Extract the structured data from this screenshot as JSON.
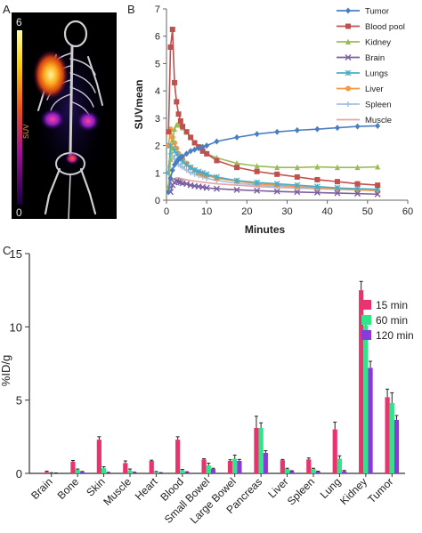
{
  "panel_labels": {
    "a": "A",
    "b": "B",
    "c": "C"
  },
  "colorbar": {
    "max_label": "6",
    "min_label": "0",
    "unit_label": "SUV"
  },
  "chart_data": [
    {
      "type": "line",
      "panel": "B",
      "xlabel": "Minutes",
      "ylabel": "SUVmean",
      "xlim": [
        0,
        60
      ],
      "ylim": [
        0,
        7
      ],
      "xticks": [
        0,
        10,
        20,
        30,
        40,
        50,
        60
      ],
      "yticks": [
        0,
        1,
        2,
        3,
        4,
        5,
        6,
        7
      ],
      "grid": false,
      "legend": "right",
      "series": [
        {
          "name": "Tumor",
          "color": "#4a7ec0",
          "marker": "diamond",
          "x": [
            0.5,
            1,
            1.5,
            2,
            2.5,
            3,
            3.5,
            4,
            5,
            6,
            7,
            8,
            9,
            10,
            12.5,
            17.5,
            22.5,
            27.5,
            32.5,
            37.5,
            42.5,
            47.5,
            52.5
          ],
          "y": [
            0.3,
            0.8,
            1.1,
            1.3,
            1.4,
            1.5,
            1.55,
            1.6,
            1.7,
            1.8,
            1.85,
            1.9,
            1.95,
            2.0,
            2.15,
            2.3,
            2.42,
            2.5,
            2.56,
            2.6,
            2.65,
            2.7,
            2.72
          ]
        },
        {
          "name": "Blood pool",
          "color": "#c0504d",
          "marker": "square",
          "x": [
            0.5,
            1,
            1.5,
            2,
            2.5,
            3,
            3.5,
            4,
            5,
            6,
            7,
            8,
            9,
            10,
            12.5,
            17.5,
            22.5,
            27.5,
            32.5,
            37.5,
            42.5,
            47.5,
            52.5
          ],
          "y": [
            2.5,
            5.6,
            6.25,
            4.3,
            3.6,
            3.15,
            2.9,
            2.7,
            2.5,
            2.3,
            2.1,
            1.95,
            1.8,
            1.7,
            1.45,
            1.2,
            1.05,
            0.95,
            0.85,
            0.75,
            0.68,
            0.6,
            0.55
          ]
        },
        {
          "name": "Kidney",
          "color": "#9bbb59",
          "marker": "triangle",
          "x": [
            0.5,
            1,
            1.5,
            2,
            2.5,
            3,
            3.5,
            4,
            5,
            6,
            7,
            8,
            9,
            10,
            12.5,
            17.5,
            22.5,
            27.5,
            32.5,
            37.5,
            42.5,
            47.5,
            52.5
          ],
          "y": [
            0.5,
            1.5,
            2.2,
            2.6,
            2.75,
            2.8,
            2.75,
            2.65,
            2.5,
            2.3,
            2.1,
            1.95,
            1.8,
            1.7,
            1.55,
            1.35,
            1.25,
            1.2,
            1.2,
            1.22,
            1.2,
            1.2,
            1.22
          ]
        },
        {
          "name": "Brain",
          "color": "#7a5ea0",
          "marker": "x",
          "x": [
            1,
            1.5,
            2,
            2.5,
            3,
            3.5,
            4,
            5,
            6,
            7,
            8,
            9,
            10,
            12.5,
            17.5,
            22.5,
            27.5,
            32.5,
            37.5,
            42.5,
            47.5,
            52.5
          ],
          "y": [
            0.3,
            0.55,
            0.65,
            0.7,
            0.68,
            0.65,
            0.62,
            0.6,
            0.55,
            0.52,
            0.5,
            0.48,
            0.45,
            0.42,
            0.38,
            0.35,
            0.32,
            0.3,
            0.28,
            0.26,
            0.24,
            0.22
          ]
        },
        {
          "name": "Lungs",
          "color": "#4bacc6",
          "marker": "asterisk",
          "x": [
            0.5,
            1,
            1.5,
            2,
            2.5,
            3,
            3.5,
            4,
            5,
            6,
            7,
            8,
            9,
            10,
            12.5,
            17.5,
            22.5,
            27.5,
            32.5,
            37.5,
            42.5,
            47.5,
            52.5
          ],
          "y": [
            1.0,
            2.0,
            1.9,
            1.8,
            1.7,
            1.6,
            1.5,
            1.4,
            1.3,
            1.2,
            1.1,
            1.05,
            1.0,
            0.95,
            0.85,
            0.72,
            0.65,
            0.6,
            0.55,
            0.5,
            0.45,
            0.42,
            0.4
          ]
        },
        {
          "name": "Liver",
          "color": "#f79646",
          "marker": "circle",
          "x": [
            0.5,
            1,
            1.5,
            2,
            2.5,
            3,
            3.5,
            4,
            5,
            6,
            7,
            8,
            9,
            10,
            12.5,
            17.5,
            22.5,
            27.5,
            32.5,
            37.5,
            42.5,
            47.5,
            52.5
          ],
          "y": [
            2.0,
            2.6,
            2.3,
            2.1,
            1.9,
            1.7,
            1.6,
            1.5,
            1.35,
            1.2,
            1.1,
            1.0,
            0.95,
            0.9,
            0.8,
            0.7,
            0.6,
            0.55,
            0.5,
            0.45,
            0.42,
            0.38,
            0.35
          ]
        },
        {
          "name": "Spleen",
          "color": "#a6bfe0",
          "marker": "plus",
          "x": [
            0.5,
            1,
            1.5,
            2,
            2.5,
            3,
            3.5,
            4,
            5,
            6,
            7,
            8,
            9,
            10,
            12.5,
            17.5,
            22.5,
            27.5,
            32.5,
            37.5,
            42.5,
            47.5,
            52.5
          ],
          "y": [
            1.2,
            1.7,
            1.6,
            1.5,
            1.4,
            1.3,
            1.25,
            1.2,
            1.1,
            1.0,
            0.95,
            0.9,
            0.85,
            0.8,
            0.72,
            0.62,
            0.55,
            0.5,
            0.46,
            0.42,
            0.4,
            0.38,
            0.35
          ]
        },
        {
          "name": "Muscle",
          "color": "#e6a3a3",
          "marker": "none",
          "x": [
            0.5,
            1,
            1.5,
            2,
            2.5,
            3,
            3.5,
            4,
            5,
            6,
            7,
            8,
            9,
            10,
            12.5,
            17.5,
            22.5,
            27.5,
            32.5,
            37.5,
            42.5,
            47.5,
            52.5
          ],
          "y": [
            0.3,
            0.6,
            0.75,
            0.8,
            0.82,
            0.82,
            0.8,
            0.78,
            0.75,
            0.72,
            0.7,
            0.68,
            0.66,
            0.64,
            0.6,
            0.55,
            0.5,
            0.47,
            0.44,
            0.42,
            0.4,
            0.38,
            0.36
          ]
        }
      ]
    },
    {
      "type": "bar",
      "panel": "C",
      "ylabel": "%ID/g",
      "ylim": [
        0,
        15
      ],
      "yticks": [
        0,
        5,
        10,
        15
      ],
      "grid": false,
      "legend": "top-right",
      "categories": [
        "Brain",
        "Bone",
        "Skin",
        "Muscle",
        "Heart",
        "Blood",
        "Small Bowel",
        "Large Bowel",
        "Pancreas",
        "Liver",
        "Spleen",
        "Lung",
        "Kidney",
        "Tumor"
      ],
      "series": [
        {
          "name": "15 min",
          "color": "#e8336e",
          "values": [
            0.1,
            0.8,
            2.3,
            0.7,
            0.85,
            2.3,
            0.95,
            0.85,
            3.1,
            0.9,
            0.95,
            3.0,
            12.5,
            5.2
          ],
          "errors": [
            0.05,
            0.08,
            0.2,
            0.15,
            0.05,
            0.2,
            0.05,
            0.08,
            0.8,
            0.05,
            0.1,
            0.5,
            0.6,
            0.55
          ]
        },
        {
          "name": "60 min",
          "color": "#2ee58a",
          "values": [
            0.03,
            0.25,
            0.35,
            0.2,
            0.1,
            0.22,
            0.55,
            1.0,
            3.1,
            0.3,
            0.3,
            1.0,
            10.1,
            4.8
          ],
          "errors": [
            0.02,
            0.05,
            0.1,
            0.1,
            0.03,
            0.05,
            0.15,
            0.25,
            0.35,
            0.05,
            0.05,
            0.2,
            0.35,
            0.7
          ]
        },
        {
          "name": "120 min",
          "color": "#8a3ad8",
          "values": [
            0.02,
            0.1,
            0.05,
            0.05,
            0.03,
            0.08,
            0.3,
            0.85,
            1.4,
            0.15,
            0.12,
            0.15,
            7.2,
            3.65
          ],
          "errors": [
            0.01,
            0.03,
            0.02,
            0.03,
            0.02,
            0.03,
            0.05,
            0.1,
            0.15,
            0.03,
            0.03,
            0.05,
            0.45,
            0.3
          ]
        }
      ]
    }
  ]
}
